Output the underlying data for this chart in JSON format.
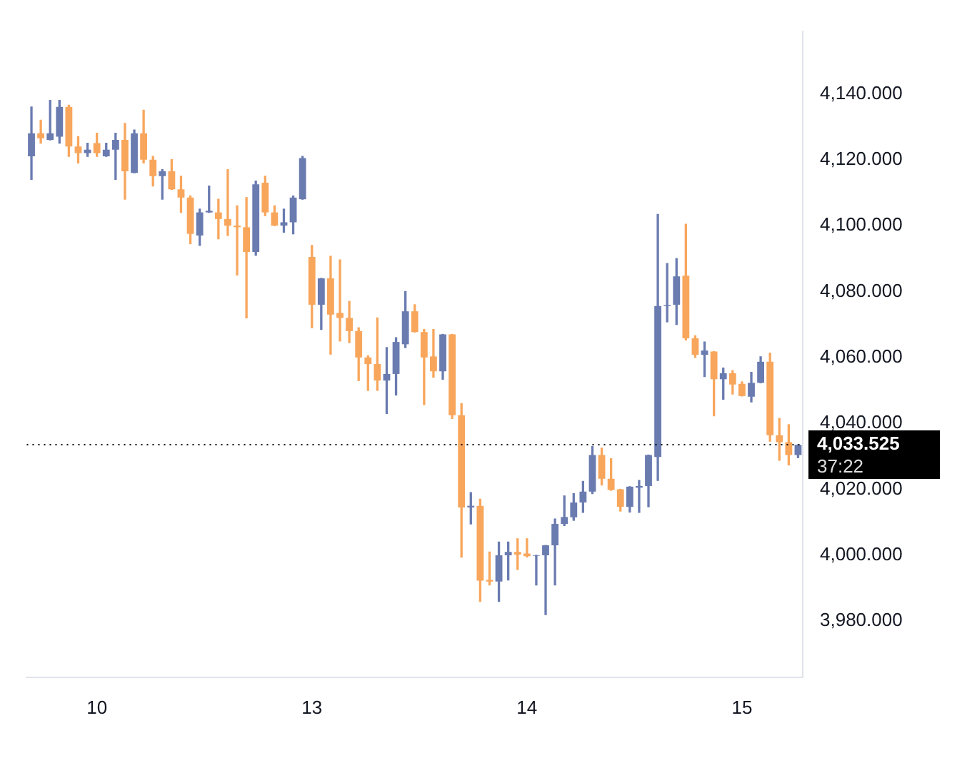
{
  "chart_data": {
    "type": "candlestick",
    "categories": [
      null,
      null,
      null,
      null,
      null,
      null,
      null,
      "10",
      null,
      null,
      null,
      null,
      null,
      null,
      null,
      null,
      null,
      null,
      null,
      null,
      null,
      null,
      null,
      null,
      null,
      null,
      null,
      null,
      null,
      null,
      "13",
      null,
      null,
      null,
      null,
      null,
      null,
      null,
      null,
      null,
      null,
      null,
      null,
      null,
      null,
      null,
      null,
      null,
      null,
      null,
      null,
      null,
      null,
      "14",
      null,
      null,
      null,
      null,
      null,
      null,
      null,
      null,
      null,
      null,
      null,
      null,
      null,
      null,
      null,
      null,
      null,
      null,
      null,
      null,
      null,
      null,
      "15",
      null,
      null,
      null,
      null,
      null,
      null
    ],
    "ohlc": [
      [
        4121,
        4136,
        4114,
        4128
      ],
      [
        4128,
        4132,
        4125,
        4126.5
      ],
      [
        4126,
        4138,
        4126,
        4128
      ],
      [
        4127,
        4138,
        4125,
        4136
      ],
      [
        4136,
        4136.5,
        4121,
        4124
      ],
      [
        4124,
        4127,
        4119,
        4122
      ],
      [
        4122,
        4125,
        4121,
        4123
      ],
      [
        4125,
        4128,
        4121,
        4122
      ],
      [
        4121,
        4125,
        4121,
        4123
      ],
      [
        4123,
        4128,
        4114,
        4126
      ],
      [
        4126,
        4131,
        4108,
        4116.5
      ],
      [
        4116,
        4129,
        4116,
        4128
      ],
      [
        4128,
        4135,
        4119,
        4120
      ],
      [
        4120,
        4121,
        4112,
        4115
      ],
      [
        4115,
        4117,
        4108,
        4116.5
      ],
      [
        4116.5,
        4120,
        4111,
        4111
      ],
      [
        4111,
        4115,
        4104,
        4108.5
      ],
      [
        4108.5,
        4109,
        4094.5,
        4097.5
      ],
      [
        4097,
        4105,
        4094,
        4104
      ],
      [
        4104,
        4112,
        4104,
        4104.5
      ],
      [
        4104,
        4108,
        4096,
        4102
      ],
      [
        4102,
        4117,
        4097,
        4100
      ],
      [
        4100,
        4106,
        4085,
        4099.5
      ],
      [
        4099.5,
        4108.5,
        4072,
        4092
      ],
      [
        4092,
        4113.5,
        4091,
        4112.5
      ],
      [
        4113,
        4115,
        4103,
        4104
      ],
      [
        4104,
        4106,
        4100,
        4100
      ],
      [
        4100,
        4105,
        4098,
        4101
      ],
      [
        4101,
        4109,
        4097.5,
        4108.5
      ],
      [
        4108,
        4121,
        4108,
        4120.5
      ],
      [
        4090.5,
        4094,
        4069,
        4076
      ],
      [
        4076,
        4084,
        4068.5,
        4084
      ],
      [
        4084,
        4090.7,
        4061,
        4073
      ],
      [
        4073.5,
        4089.6,
        4065,
        4072
      ],
      [
        4072,
        4077,
        4064.5,
        4068
      ],
      [
        4068,
        4069,
        4053,
        4060
      ],
      [
        4060,
        4060.5,
        4050,
        4058
      ],
      [
        4058,
        4072,
        4050,
        4053
      ],
      [
        4053,
        4063,
        4043,
        4055
      ],
      [
        4055,
        4066,
        4048.6,
        4064.7
      ],
      [
        4064,
        4080,
        4063,
        4074
      ],
      [
        4074,
        4076,
        4067.7,
        4067.7
      ],
      [
        4067.7,
        4068.5,
        4045.7,
        4060
      ],
      [
        4060.3,
        4068.5,
        4054,
        4055.8
      ],
      [
        4055.8,
        4067,
        4053.4,
        4067
      ],
      [
        4067,
        4067,
        4041.5,
        4042.5
      ],
      [
        4042.5,
        4046,
        3999.4,
        4014.5
      ],
      [
        4014.5,
        4019,
        4009.5,
        4015
      ],
      [
        4015,
        4017,
        3986,
        3992.3
      ],
      [
        3992.5,
        4001,
        3991,
        3992
      ],
      [
        3992,
        4004,
        3986,
        4000
      ],
      [
        4000,
        4004,
        3992.5,
        4001
      ],
      [
        4001,
        4005,
        3995.7,
        4000.2
      ],
      [
        4000.5,
        4005,
        3999.5,
        3999.7
      ],
      [
        3999.8,
        4000,
        3991,
        4000
      ],
      [
        4000,
        4003,
        3982,
        4003
      ],
      [
        4003,
        4011,
        3991,
        4009.5
      ],
      [
        4009.5,
        4018,
        4009,
        4011.6
      ],
      [
        4011.5,
        4018.7,
        4010.6,
        4016
      ],
      [
        4016,
        4022.4,
        4013,
        4019.3
      ],
      [
        4019.3,
        4033,
        4018.7,
        4030.4
      ],
      [
        4030.4,
        4032.5,
        4021.3,
        4023.2
      ],
      [
        4023.2,
        4029.3,
        4019.7,
        4019.8
      ],
      [
        4020,
        4020,
        4013.4,
        4014.7
      ],
      [
        4014.7,
        4020.8,
        4013.1,
        4020.8
      ],
      [
        4020.5,
        4022.7,
        4013,
        4021
      ],
      [
        4021,
        4030.4,
        4014.7,
        4030.4
      ],
      [
        4029.8,
        4103.4,
        4022.7,
        4075.6
      ],
      [
        4075.6,
        4088.5,
        4070.8,
        4075.9
      ],
      [
        4076,
        4090,
        4070,
        4084.6
      ],
      [
        4084.8,
        4100.4,
        4065.3,
        4065.8
      ],
      [
        4065.8,
        4066.6,
        4060,
        4060.8
      ],
      [
        4060.8,
        4064.7,
        4054.2,
        4062.1
      ],
      [
        4061.8,
        4061.8,
        4042.3,
        4053.4
      ],
      [
        4053.4,
        4056.8,
        4047.3,
        4055.2
      ],
      [
        4055.2,
        4056,
        4048.9,
        4051.8
      ],
      [
        4052,
        4052.6,
        4048.3,
        4048.3
      ],
      [
        4048.1,
        4055.5,
        4046.5,
        4052.3
      ],
      [
        4052.3,
        4060.2,
        4052.3,
        4058.7
      ],
      [
        4058.7,
        4061.3,
        4034.6,
        4036.4
      ],
      [
        4036.4,
        4041.5,
        4028.8,
        4034.3
      ],
      [
        4034.3,
        4039.6,
        4027.4,
        4030.4
      ],
      [
        4030.4,
        4033.5,
        4029.6,
        4033.5
      ]
    ],
    "colors": [
      "#6a7bb0",
      "#f8a65c",
      "#6a7bb0",
      "#6a7bb0",
      "#f8a65c",
      "#f8a65c",
      "#6a7bb0",
      "#f8a65c",
      "#6a7bb0",
      "#6a7bb0",
      "#f8a65c",
      "#6a7bb0",
      "#f8a65c",
      "#f8a65c",
      "#6a7bb0",
      "#f8a65c",
      "#f8a65c",
      "#f8a65c",
      "#6a7bb0",
      "#6a7bb0",
      "#f8a65c",
      "#f8a65c",
      "#f8a65c",
      "#f8a65c",
      "#6a7bb0",
      "#f8a65c",
      "#f8a65c",
      "#6a7bb0",
      "#6a7bb0",
      "#6a7bb0",
      "#f8a65c",
      "#6a7bb0",
      "#f8a65c",
      "#f8a65c",
      "#f8a65c",
      "#f8a65c",
      "#f8a65c",
      "#f8a65c",
      "#6a7bb0",
      "#6a7bb0",
      "#6a7bb0",
      "#f8a65c",
      "#f8a65c",
      "#f8a65c",
      "#6a7bb0",
      "#f8a65c",
      "#f8a65c",
      "#6a7bb0",
      "#f8a65c",
      "#f8a65c",
      "#6a7bb0",
      "#6a7bb0",
      "#f8a65c",
      "#f8a65c",
      "#6a7bb0",
      "#6a7bb0",
      "#6a7bb0",
      "#6a7bb0",
      "#6a7bb0",
      "#6a7bb0",
      "#6a7bb0",
      "#f8a65c",
      "#f8a65c",
      "#f8a65c",
      "#6a7bb0",
      "#6a7bb0",
      "#6a7bb0",
      "#6a7bb0",
      "#6a7bb0",
      "#6a7bb0",
      "#f8a65c",
      "#f8a65c",
      "#6a7bb0",
      "#f8a65c",
      "#6a7bb0",
      "#f8a65c",
      "#f8a65c",
      "#6a7bb0",
      "#6a7bb0",
      "#f8a65c",
      "#f8a65c",
      "#f8a65c",
      "#6a7bb0"
    ],
    "ylim": [
      3963,
      4159
    ],
    "yticks": [
      {
        "value": 3980,
        "label": "3,980.000"
      },
      {
        "value": 4000,
        "label": "4,000.000"
      },
      {
        "value": 4020,
        "label": "4,020.000"
      },
      {
        "value": 4040,
        "label": "4,040.000"
      },
      {
        "value": 4060,
        "label": "4,060.000"
      },
      {
        "value": 4080,
        "label": "4,080.000"
      },
      {
        "value": 4100,
        "label": "4,100.000"
      },
      {
        "value": 4120,
        "label": "4,120.000"
      },
      {
        "value": 4140,
        "label": "4,140.000"
      }
    ],
    "ref_lines": [
      {
        "axis": "y",
        "value": 4033.525,
        "label": "4,033.525",
        "color": "#000000",
        "line_style": "dotted"
      }
    ],
    "annotations": [
      "37:22"
    ],
    "grid": false,
    "legend": false
  }
}
